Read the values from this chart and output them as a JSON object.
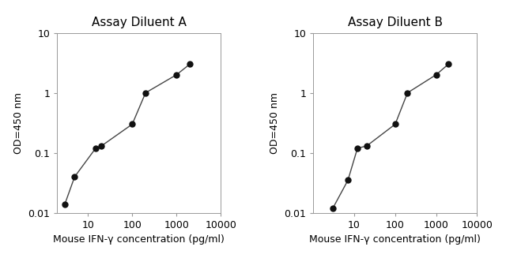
{
  "panel_A": {
    "title": "Assay Diluent A",
    "x": [
      3,
      5,
      15,
      20,
      100,
      200,
      1000,
      2000
    ],
    "y": [
      0.014,
      0.04,
      0.12,
      0.13,
      0.3,
      1.0,
      2.0,
      3.0
    ],
    "xlabel": "Mouse IFN-γ concentration (pg/ml)",
    "ylabel": "OD=450 nm",
    "xlim": [
      2,
      10000
    ],
    "ylim": [
      0.01,
      10
    ]
  },
  "panel_B": {
    "title": "Assay Diluent B",
    "x": [
      3,
      7,
      12,
      20,
      100,
      200,
      1000,
      2000
    ],
    "y": [
      0.012,
      0.035,
      0.12,
      0.13,
      0.3,
      1.0,
      2.0,
      3.0
    ],
    "xlabel": "Mouse IFN-γ concentration (pg/ml)",
    "ylabel": "OD=450 nm",
    "xlim": [
      1,
      10000
    ],
    "ylim": [
      0.01,
      10
    ]
  },
  "line_color": "#444444",
  "marker_color": "#111111",
  "marker_size": 5,
  "line_width": 1.0,
  "bg_color": "#ffffff",
  "title_fontsize": 11,
  "label_fontsize": 9,
  "tick_fontsize": 9
}
